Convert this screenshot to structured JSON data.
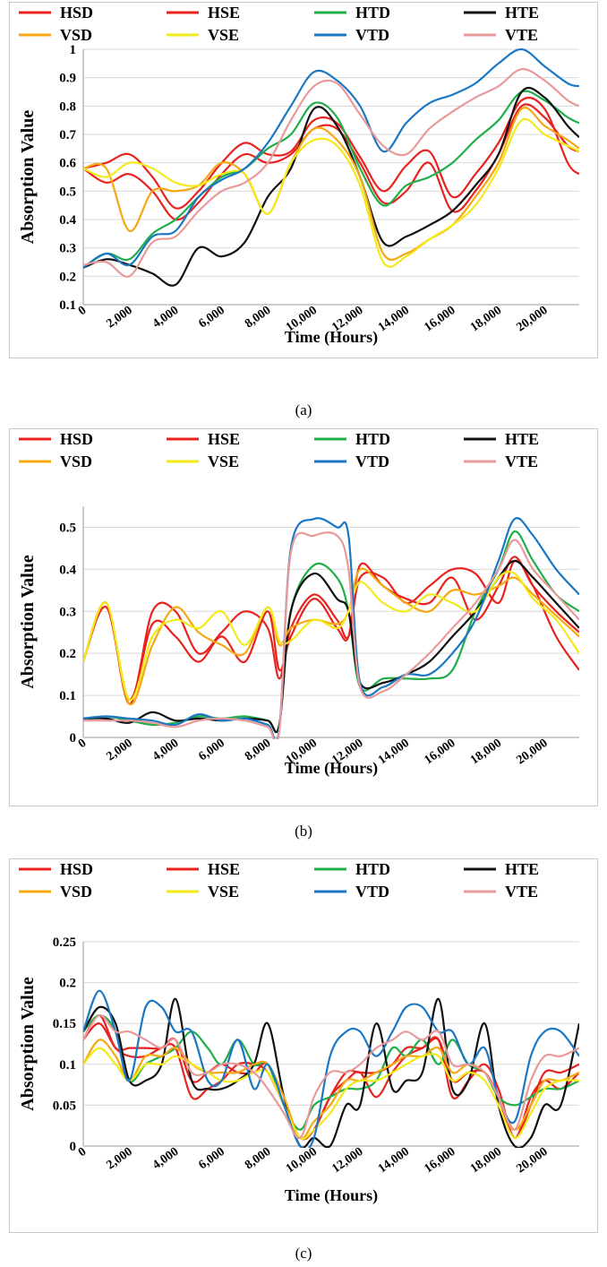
{
  "series_colors": {
    "HSD": "#e8231f",
    "HSE": "#e8231f",
    "HTD": "#1fae4a",
    "HTE": "#111111",
    "VSD": "#f5a811",
    "VSE": "#f2ea1a",
    "VTD": "#1a77c4",
    "VTE": "#e89a9a"
  },
  "captions": {
    "a": "(a)",
    "b": "(b)",
    "c": "(c)"
  },
  "chart_data": [
    {
      "type": "line",
      "panel": "a",
      "xlabel": "Time (Hours)",
      "ylabel": "Absorption Value",
      "ylim": [
        0.1,
        1.0
      ],
      "yticks": [
        0.1,
        0.2,
        0.3,
        0.4,
        0.5,
        0.6,
        0.7,
        0.8,
        0.9,
        1.0
      ],
      "ytick_labels": [
        "0.1",
        "0.2",
        "0.3",
        "0.4",
        "0.5",
        "0.6",
        "0.7",
        "0.8",
        "0.9",
        "1"
      ],
      "xlim": [
        0,
        21500
      ],
      "xticks": [
        0,
        2000,
        4000,
        6000,
        8000,
        10000,
        12000,
        14000,
        16000,
        18000,
        20000
      ],
      "xtick_labels": [
        "0",
        "2,000",
        "4,000",
        "6,000",
        "8,000",
        "10,000",
        "12,000",
        "14,000",
        "16,000",
        "18,000",
        "20,000"
      ],
      "grid": "horizontal",
      "legend": [
        "HSD",
        "HSE",
        "HTD",
        "HTE",
        "VSD",
        "VSE",
        "VTD",
        "VTE"
      ],
      "x": [
        0,
        1000,
        2000,
        3000,
        4000,
        5000,
        6000,
        7000,
        8000,
        9000,
        10000,
        11000,
        12000,
        13000,
        14000,
        15000,
        16000,
        17000,
        18000,
        19000,
        20000,
        21000,
        21500
      ],
      "series": [
        {
          "name": "HSD",
          "values": [
            0.58,
            0.6,
            0.63,
            0.55,
            0.44,
            0.5,
            0.6,
            0.67,
            0.63,
            0.64,
            0.75,
            0.74,
            0.62,
            0.5,
            0.59,
            0.64,
            0.48,
            0.56,
            0.67,
            0.82,
            0.79,
            0.6,
            0.56
          ]
        },
        {
          "name": "HSE",
          "values": [
            0.58,
            0.53,
            0.56,
            0.5,
            0.4,
            0.46,
            0.56,
            0.63,
            0.6,
            0.63,
            0.72,
            0.72,
            0.6,
            0.46,
            0.5,
            0.6,
            0.43,
            0.5,
            0.63,
            0.8,
            0.76,
            0.66,
            0.64
          ]
        },
        {
          "name": "HTD",
          "values": [
            0.23,
            0.28,
            0.26,
            0.35,
            0.4,
            0.48,
            0.55,
            0.58,
            0.65,
            0.7,
            0.81,
            0.76,
            0.58,
            0.45,
            0.52,
            0.55,
            0.6,
            0.68,
            0.75,
            0.85,
            0.82,
            0.76,
            0.74
          ]
        },
        {
          "name": "HTE",
          "values": [
            0.23,
            0.26,
            0.24,
            0.21,
            0.17,
            0.3,
            0.27,
            0.32,
            0.48,
            0.58,
            0.79,
            0.73,
            0.55,
            0.32,
            0.34,
            0.38,
            0.43,
            0.52,
            0.63,
            0.85,
            0.83,
            0.73,
            0.69
          ]
        },
        {
          "name": "VSD",
          "values": [
            0.58,
            0.58,
            0.36,
            0.5,
            0.5,
            0.52,
            0.6,
            0.56,
            0.42,
            0.6,
            0.72,
            0.68,
            0.55,
            0.28,
            0.28,
            0.33,
            0.38,
            0.48,
            0.6,
            0.79,
            0.73,
            0.68,
            0.65
          ]
        },
        {
          "name": "VSE",
          "values": [
            0.58,
            0.55,
            0.6,
            0.58,
            0.53,
            0.52,
            0.56,
            0.56,
            0.42,
            0.6,
            0.68,
            0.66,
            0.52,
            0.25,
            0.27,
            0.33,
            0.38,
            0.45,
            0.58,
            0.75,
            0.7,
            0.66,
            0.64
          ]
        },
        {
          "name": "VTD",
          "values": [
            0.23,
            0.28,
            0.24,
            0.34,
            0.36,
            0.48,
            0.54,
            0.58,
            0.67,
            0.8,
            0.92,
            0.89,
            0.8,
            0.64,
            0.74,
            0.81,
            0.84,
            0.88,
            0.95,
            1.0,
            0.94,
            0.88,
            0.87
          ]
        },
        {
          "name": "VTE",
          "values": [
            0.24,
            0.25,
            0.2,
            0.32,
            0.34,
            0.43,
            0.5,
            0.53,
            0.6,
            0.75,
            0.87,
            0.88,
            0.77,
            0.66,
            0.63,
            0.72,
            0.78,
            0.83,
            0.87,
            0.93,
            0.89,
            0.82,
            0.8
          ]
        }
      ]
    },
    {
      "type": "line",
      "panel": "b",
      "xlabel": "Time (Hours)",
      "ylabel": "Absorption Value",
      "ylim": [
        0,
        0.55
      ],
      "yticks": [
        0,
        0.1,
        0.2,
        0.3,
        0.4,
        0.5
      ],
      "ytick_labels": [
        "0",
        "0.1",
        "0.2",
        "0.3",
        "0.4",
        "0.5"
      ],
      "xlim": [
        0,
        21500
      ],
      "xticks": [
        0,
        2000,
        4000,
        6000,
        8000,
        10000,
        12000,
        14000,
        16000,
        18000,
        20000
      ],
      "xtick_labels": [
        "0",
        "2,000",
        "4,000",
        "6,000",
        "8,000",
        "10,000",
        "12,000",
        "14,000",
        "16,000",
        "18,000",
        "20,000"
      ],
      "grid": "horizontal",
      "legend": [
        "HSD",
        "HSE",
        "HTD",
        "HTE",
        "VSD",
        "VSE",
        "VTD",
        "VTE"
      ],
      "x": [
        0,
        1000,
        2000,
        3000,
        4000,
        5000,
        6000,
        7000,
        8000,
        8500,
        9000,
        10000,
        11000,
        11500,
        12000,
        13000,
        14000,
        15000,
        16000,
        17000,
        18000,
        18700,
        19500,
        20500,
        21500
      ],
      "series": [
        {
          "name": "HSD",
          "values": [
            0.18,
            0.32,
            0.08,
            0.3,
            0.3,
            0.2,
            0.25,
            0.3,
            0.26,
            0.14,
            0.26,
            0.34,
            0.28,
            0.24,
            0.38,
            0.38,
            0.32,
            0.36,
            0.4,
            0.39,
            0.32,
            0.42,
            0.36,
            0.24,
            0.16
          ]
        },
        {
          "name": "HSE",
          "values": [
            0.18,
            0.31,
            0.09,
            0.27,
            0.24,
            0.18,
            0.24,
            0.18,
            0.3,
            0.16,
            0.24,
            0.33,
            0.26,
            0.24,
            0.41,
            0.36,
            0.33,
            0.32,
            0.38,
            0.28,
            0.36,
            0.43,
            0.36,
            0.3,
            0.25
          ]
        },
        {
          "name": "HTD",
          "values": [
            0.045,
            0.05,
            0.04,
            0.03,
            0.035,
            0.05,
            0.045,
            0.05,
            0.04,
            0.03,
            0.3,
            0.41,
            0.38,
            0.3,
            0.12,
            0.14,
            0.14,
            0.14,
            0.16,
            0.3,
            0.4,
            0.49,
            0.42,
            0.34,
            0.3
          ]
        },
        {
          "name": "HTE",
          "values": [
            0.045,
            0.045,
            0.035,
            0.06,
            0.04,
            0.045,
            0.04,
            0.045,
            0.04,
            0.03,
            0.3,
            0.39,
            0.33,
            0.3,
            0.13,
            0.13,
            0.15,
            0.18,
            0.24,
            0.3,
            0.38,
            0.42,
            0.38,
            0.32,
            0.26
          ]
        },
        {
          "name": "VSD",
          "values": [
            0.18,
            0.32,
            0.08,
            0.22,
            0.31,
            0.25,
            0.22,
            0.2,
            0.31,
            0.22,
            0.26,
            0.28,
            0.27,
            0.3,
            0.4,
            0.36,
            0.32,
            0.3,
            0.35,
            0.34,
            0.36,
            0.38,
            0.34,
            0.29,
            0.24
          ]
        },
        {
          "name": "VSE",
          "values": [
            0.18,
            0.32,
            0.09,
            0.24,
            0.28,
            0.26,
            0.3,
            0.22,
            0.31,
            0.23,
            0.23,
            0.28,
            0.26,
            0.3,
            0.37,
            0.32,
            0.3,
            0.34,
            0.32,
            0.3,
            0.38,
            0.39,
            0.33,
            0.28,
            0.2
          ]
        },
        {
          "name": "VTD",
          "values": [
            0.045,
            0.05,
            0.045,
            0.04,
            0.03,
            0.055,
            0.04,
            0.045,
            0.03,
            0.02,
            0.45,
            0.52,
            0.5,
            0.48,
            0.13,
            0.12,
            0.15,
            0.15,
            0.2,
            0.28,
            0.42,
            0.52,
            0.48,
            0.4,
            0.34
          ]
        },
        {
          "name": "VTE",
          "values": [
            0.04,
            0.04,
            0.04,
            0.035,
            0.025,
            0.04,
            0.045,
            0.04,
            0.025,
            0.015,
            0.44,
            0.48,
            0.48,
            0.4,
            0.12,
            0.11,
            0.15,
            0.2,
            0.26,
            0.32,
            0.4,
            0.47,
            0.4,
            0.34,
            0.28
          ]
        }
      ]
    },
    {
      "type": "line",
      "panel": "c",
      "xlabel": "Time (Hours)",
      "ylabel": "Absorption Value",
      "ylim": [
        0,
        0.25
      ],
      "yticks": [
        0,
        0.05,
        0.1,
        0.15,
        0.2,
        0.25
      ],
      "ytick_labels": [
        "0",
        "0.05",
        "0.1",
        "0.15",
        "0.2",
        "0.25"
      ],
      "xlim": [
        0,
        21500
      ],
      "xticks": [
        0,
        2000,
        4000,
        6000,
        8000,
        10000,
        12000,
        14000,
        16000,
        18000,
        20000
      ],
      "xtick_labels": [
        "0",
        "2,000",
        "4,000",
        "6,000",
        "8,000",
        "10,000",
        "12,000",
        "14,000",
        "16,000",
        "18,000",
        "20,000"
      ],
      "grid": "horizontal",
      "legend": [
        "HSD",
        "HSE",
        "HTD",
        "HTE",
        "VSD",
        "VSE",
        "VTD",
        "VTE"
      ],
      "x": [
        0,
        700,
        1400,
        2000,
        2700,
        3400,
        4000,
        4700,
        5400,
        6000,
        6700,
        7400,
        8000,
        8700,
        9400,
        10000,
        10700,
        11400,
        12000,
        12700,
        13400,
        14000,
        14700,
        15400,
        16000,
        16700,
        17400,
        18000,
        18700,
        19400,
        20000,
        20700,
        21500
      ],
      "series": [
        {
          "name": "HSD",
          "values": [
            0.13,
            0.16,
            0.12,
            0.12,
            0.12,
            0.12,
            0.13,
            0.08,
            0.09,
            0.1,
            0.09,
            0.09,
            0.1,
            0.05,
            0.01,
            0.02,
            0.06,
            0.09,
            0.09,
            0.09,
            0.1,
            0.12,
            0.12,
            0.13,
            0.08,
            0.09,
            0.09,
            0.06,
            0.01,
            0.05,
            0.09,
            0.09,
            0.1
          ]
        },
        {
          "name": "HSE",
          "values": [
            0.13,
            0.15,
            0.12,
            0.11,
            0.11,
            0.12,
            0.12,
            0.06,
            0.07,
            0.08,
            0.1,
            0.1,
            0.09,
            0.05,
            0.01,
            0.02,
            0.06,
            0.08,
            0.09,
            0.06,
            0.09,
            0.11,
            0.12,
            0.13,
            0.06,
            0.08,
            0.1,
            0.07,
            0.01,
            0.06,
            0.08,
            0.07,
            0.09
          ]
        },
        {
          "name": "HTD",
          "values": [
            0.14,
            0.16,
            0.14,
            0.08,
            0.1,
            0.11,
            0.12,
            0.14,
            0.12,
            0.1,
            0.13,
            0.1,
            0.1,
            0.05,
            0.02,
            0.05,
            0.06,
            0.07,
            0.07,
            0.08,
            0.12,
            0.11,
            0.13,
            0.1,
            0.13,
            0.1,
            0.09,
            0.06,
            0.05,
            0.06,
            0.07,
            0.07,
            0.08
          ]
        },
        {
          "name": "HTE",
          "values": [
            0.14,
            0.17,
            0.15,
            0.08,
            0.08,
            0.1,
            0.18,
            0.08,
            0.07,
            0.07,
            0.08,
            0.1,
            0.15,
            0.06,
            0.0,
            0.01,
            0.0,
            0.05,
            0.05,
            0.15,
            0.07,
            0.08,
            0.09,
            0.18,
            0.07,
            0.08,
            0.15,
            0.05,
            0.0,
            0.01,
            0.05,
            0.05,
            0.15
          ]
        },
        {
          "name": "VSD",
          "values": [
            0.1,
            0.13,
            0.11,
            0.08,
            0.11,
            0.11,
            0.12,
            0.1,
            0.09,
            0.09,
            0.09,
            0.1,
            0.1,
            0.06,
            0.01,
            0.03,
            0.05,
            0.08,
            0.08,
            0.09,
            0.1,
            0.11,
            0.11,
            0.12,
            0.09,
            0.1,
            0.09,
            0.06,
            0.02,
            0.05,
            0.08,
            0.08,
            0.09
          ]
        },
        {
          "name": "VSE",
          "values": [
            0.1,
            0.12,
            0.1,
            0.08,
            0.1,
            0.1,
            0.11,
            0.1,
            0.09,
            0.08,
            0.08,
            0.09,
            0.09,
            0.05,
            0.01,
            0.02,
            0.04,
            0.07,
            0.08,
            0.08,
            0.09,
            0.1,
            0.11,
            0.11,
            0.08,
            0.09,
            0.08,
            0.05,
            0.01,
            0.04,
            0.07,
            0.08,
            0.08
          ]
        },
        {
          "name": "VTD",
          "values": [
            0.14,
            0.19,
            0.14,
            0.08,
            0.17,
            0.17,
            0.14,
            0.14,
            0.08,
            0.08,
            0.13,
            0.07,
            0.1,
            0.05,
            0.0,
            0.01,
            0.11,
            0.14,
            0.14,
            0.11,
            0.14,
            0.17,
            0.17,
            0.14,
            0.14,
            0.1,
            0.12,
            0.06,
            0.03,
            0.11,
            0.14,
            0.14,
            0.11
          ]
        },
        {
          "name": "VTE",
          "values": [
            0.13,
            0.16,
            0.14,
            0.14,
            0.13,
            0.12,
            0.13,
            0.09,
            0.09,
            0.1,
            0.1,
            0.09,
            0.07,
            0.04,
            0.01,
            0.06,
            0.09,
            0.09,
            0.1,
            0.12,
            0.13,
            0.14,
            0.13,
            0.14,
            0.1,
            0.1,
            0.09,
            0.06,
            0.02,
            0.08,
            0.11,
            0.11,
            0.12
          ]
        }
      ]
    }
  ]
}
